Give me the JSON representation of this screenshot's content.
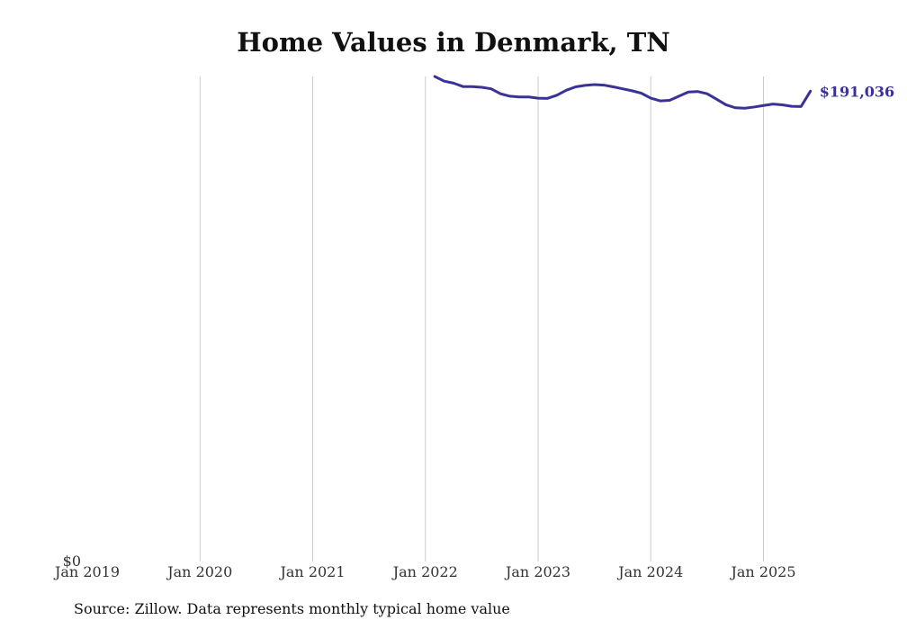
{
  "chart_data": {
    "type": "line",
    "title": "Home Values in Denmark, TN",
    "xlabel": "",
    "ylabel": "",
    "x_tick_labels": [
      "Jan 2019",
      "Jan 2020",
      "Jan 2021",
      "Jan 2022",
      "Jan 2023",
      "Jan 2024",
      "Jan 2025"
    ],
    "y_tick_labels": [
      "$0"
    ],
    "ylim": [
      0,
      197000
    ],
    "grid": "vertical",
    "line_color": "#3a3296",
    "end_label": "$191,036",
    "series": [
      {
        "x": [
          "2022-02",
          "2022-03",
          "2022-04",
          "2022-05",
          "2022-06",
          "2022-07",
          "2022-08",
          "2022-09",
          "2022-10",
          "2022-11",
          "2022-12",
          "2023-01",
          "2023-02",
          "2023-03",
          "2023-04",
          "2023-05",
          "2023-06",
          "2023-07",
          "2023-08",
          "2023-09",
          "2023-10",
          "2023-11",
          "2023-12",
          "2024-01",
          "2024-02",
          "2024-03",
          "2024-04",
          "2024-05",
          "2024-06",
          "2024-07",
          "2024-08",
          "2024-09",
          "2024-10",
          "2024-11",
          "2024-12",
          "2025-01",
          "2025-02",
          "2025-03",
          "2025-04",
          "2025-05",
          "2025-06"
        ],
        "y": [
          197000,
          195100,
          194300,
          192900,
          192900,
          192600,
          192000,
          190000,
          189000,
          188700,
          188700,
          188200,
          188100,
          189400,
          191400,
          192800,
          193400,
          193700,
          193500,
          192800,
          192000,
          191200,
          190200,
          188200,
          187100,
          187300,
          189000,
          190700,
          190900,
          190000,
          187800,
          185500,
          184300,
          184100,
          184600,
          185200,
          185800,
          185500,
          184900,
          184800,
          191036
        ]
      }
    ],
    "source": "Source: Zillow. Data represents monthly typical home value"
  }
}
